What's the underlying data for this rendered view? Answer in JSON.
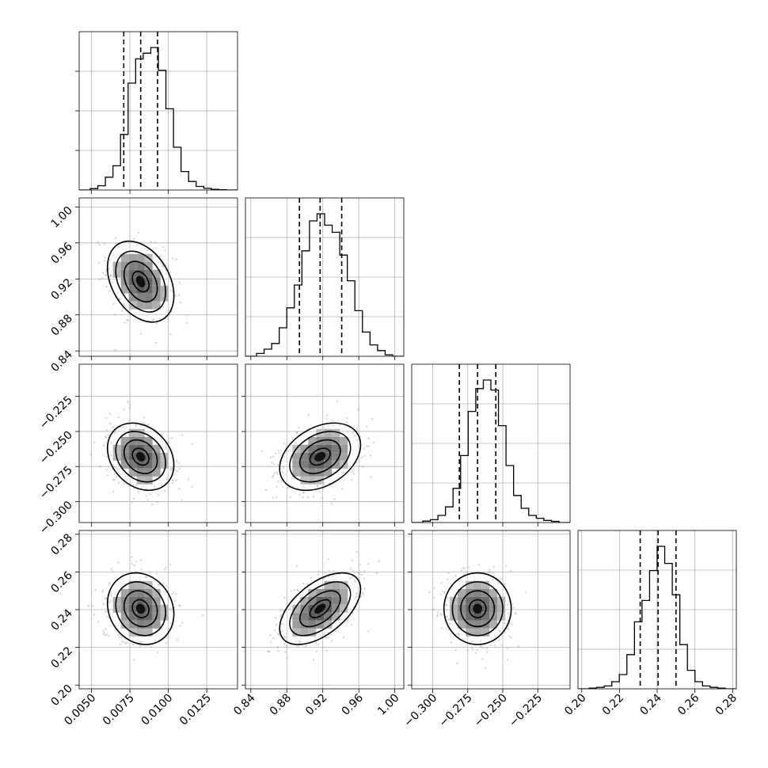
{
  "chart_data": {
    "type": "corner",
    "title": "",
    "parameters": [
      {
        "range": [
          0.0042,
          0.0145
        ],
        "ticks": [
          0.005,
          0.0075,
          0.01,
          0.0125
        ],
        "tick_labels": [
          "0.0050",
          "0.0075",
          "0.0100",
          "0.0125"
        ],
        "mean": 0.0082,
        "std": 0.00108,
        "quantiles": [
          0.0071,
          0.0082,
          0.0093
        ],
        "histogram": [
          0.01,
          0.03,
          0.09,
          0.17,
          0.39,
          0.75,
          0.92,
          0.96,
          1.0,
          0.84,
          0.57,
          0.3,
          0.13,
          0.06,
          0.025,
          0.012,
          0.005,
          0.002
        ]
      },
      {
        "range": [
          0.834,
          1.01
        ],
        "ticks": [
          0.84,
          0.88,
          0.92,
          0.96,
          1.0
        ],
        "tick_labels": [
          "0.84",
          "0.88",
          "0.92",
          "0.96",
          "1.00"
        ],
        "mean": 0.917,
        "std": 0.0225,
        "quantiles": [
          0.894,
          0.917,
          0.941
        ],
        "histogram": [
          0.02,
          0.05,
          0.09,
          0.2,
          0.34,
          0.5,
          0.74,
          0.95,
          1.0,
          0.92,
          0.87,
          0.71,
          0.53,
          0.32,
          0.17,
          0.08,
          0.04,
          0.01
        ]
      },
      {
        "range": [
          -0.315,
          -0.202
        ],
        "ticks": [
          -0.3,
          -0.275,
          -0.25,
          -0.225
        ],
        "tick_labels": [
          "−0.300",
          "−0.275",
          "−0.250",
          "−0.225"
        ],
        "mean": -0.268,
        "std": 0.012,
        "quantiles": [
          -0.281,
          -0.268,
          -0.255
        ],
        "histogram": [
          0.01,
          0.02,
          0.05,
          0.11,
          0.24,
          0.47,
          0.78,
          0.94,
          1.0,
          0.93,
          0.68,
          0.4,
          0.19,
          0.1,
          0.05,
          0.03,
          0.015,
          0.008
        ]
      },
      {
        "range": [
          0.198,
          0.282
        ],
        "ticks": [
          0.2,
          0.22,
          0.24,
          0.26,
          0.28
        ],
        "tick_labels": [
          "0.20",
          "0.22",
          "0.24",
          "0.26",
          "0.28"
        ],
        "mean": 0.2405,
        "std": 0.0095,
        "quantiles": [
          0.231,
          0.2405,
          0.25
        ],
        "histogram": [
          0.005,
          0.01,
          0.02,
          0.05,
          0.1,
          0.24,
          0.47,
          0.62,
          0.83,
          1.0,
          0.88,
          0.66,
          0.31,
          0.13,
          0.05,
          0.02,
          0.01,
          0.005
        ]
      }
    ],
    "correlations": {
      "1-0": -0.35,
      "2-0": -0.25,
      "2-1": 0.35,
      "3-0": -0.15,
      "3-1": 0.55,
      "3-2": 0.0
    },
    "contour_levels_sigma": [
      0.5,
      1.0,
      1.5,
      2.0
    ],
    "grid": true
  }
}
